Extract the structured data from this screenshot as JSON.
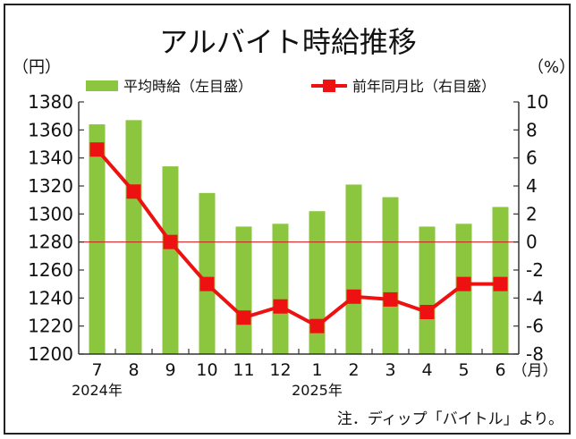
{
  "chart_data": {
    "type": "bar+line",
    "title": "アルバイト時給推移",
    "left_unit": "（円）",
    "right_unit": "（%）",
    "categories": [
      "7",
      "8",
      "9",
      "10",
      "11",
      "12",
      "1",
      "2",
      "3",
      "4",
      "5",
      "6"
    ],
    "month_unit": "（月）",
    "year_labels": [
      {
        "category": "7",
        "text": "2024年"
      },
      {
        "category": "1",
        "text": "2025年"
      }
    ],
    "left_axis": {
      "min": 1200,
      "max": 1380,
      "ticks": [
        1200,
        1220,
        1240,
        1260,
        1280,
        1300,
        1320,
        1340,
        1360,
        1380
      ]
    },
    "right_axis": {
      "min": -8,
      "max": 10,
      "ticks": [
        -8,
        -6,
        -4,
        -2,
        0,
        2,
        4,
        6,
        8,
        10
      ]
    },
    "series": [
      {
        "name": "平均時給（左目盛）",
        "type": "bar",
        "axis": "left",
        "color": "#8cc63f",
        "values": [
          1364,
          1367,
          1334,
          1315,
          1291,
          1293,
          1302,
          1321,
          1312,
          1291,
          1293,
          1305
        ]
      },
      {
        "name": "前年同月比（右目盛）",
        "type": "line",
        "axis": "right",
        "color": "#ee1111",
        "values": [
          6.6,
          3.6,
          0.0,
          -3.0,
          -5.4,
          -4.6,
          -6.0,
          -3.9,
          -4.1,
          -5.0,
          -3.0,
          -3.0
        ]
      }
    ],
    "reference_line": {
      "axis": "right",
      "value": 0,
      "color": "#cc2222"
    },
    "legend_placement": "top",
    "grid": false
  },
  "note": "注．ディップ「バイトル」より。"
}
